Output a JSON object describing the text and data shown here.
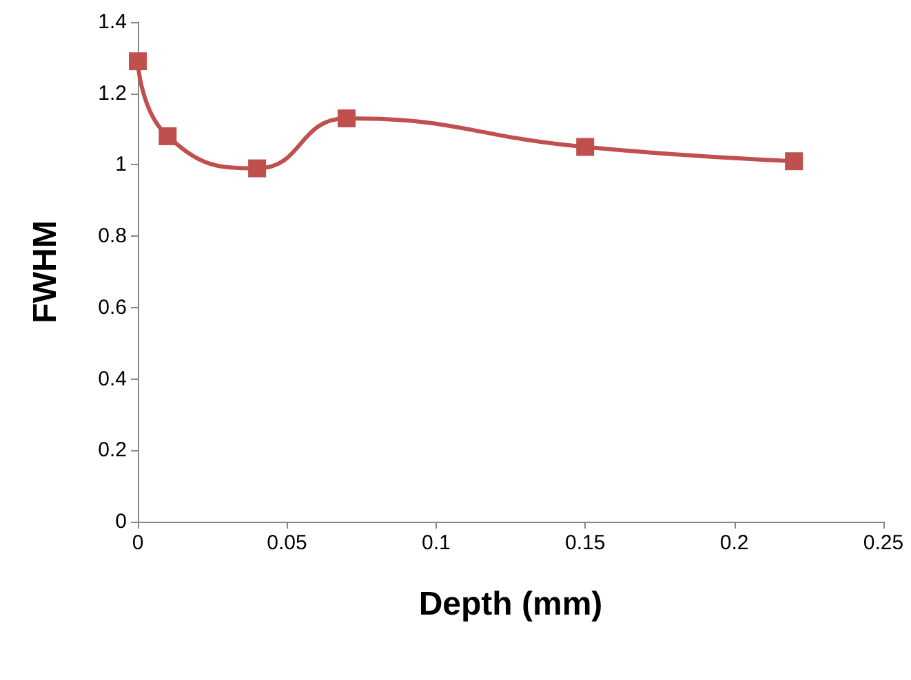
{
  "chart_data": {
    "type": "line",
    "xlabel": "Depth (mm)",
    "ylabel": "FWHM",
    "x": [
      0,
      0.01,
      0.04,
      0.07,
      0.15,
      0.22
    ],
    "series": [
      {
        "color": "#c0504d",
        "values": [
          1.29,
          1.08,
          0.99,
          1.13,
          1.05,
          1.01
        ]
      }
    ],
    "xlim": [
      0,
      0.25
    ],
    "xticks": [
      0,
      0.05,
      0.1,
      0.15,
      0.2,
      0.25
    ],
    "ylim": [
      0,
      1.4
    ],
    "yticks": [
      0,
      0.2,
      0.4,
      0.6,
      0.8,
      1,
      1.2,
      1.4
    ],
    "grid": false,
    "marker": "square",
    "line_style": "solid"
  }
}
